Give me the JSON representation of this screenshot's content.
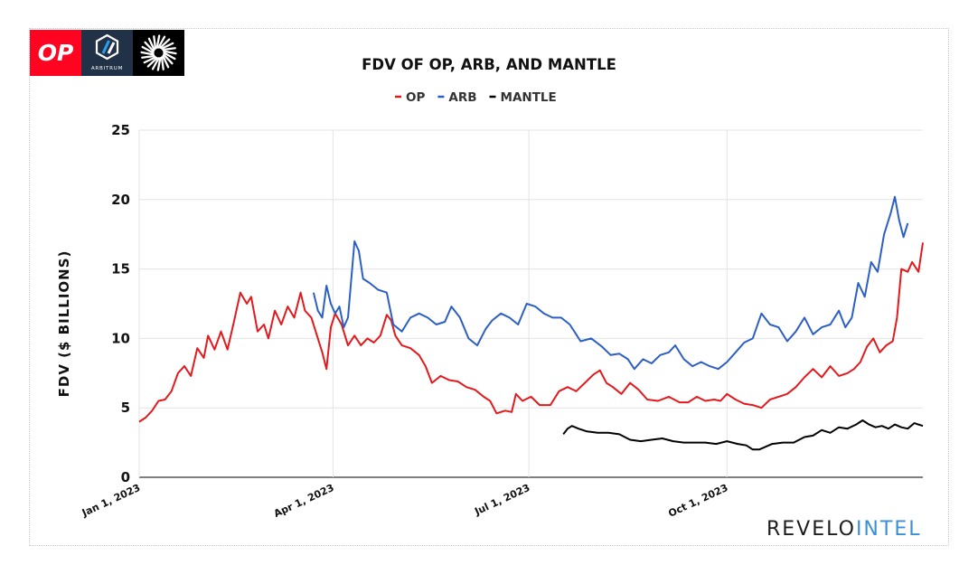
{
  "logos": {
    "op_text": "OP",
    "arb_text": "ARBITRUM",
    "colors": {
      "op": "#ff0420",
      "arb": "#213147",
      "mantle": "#000000"
    },
    "icons": [
      "op-logo-icon",
      "arbitrum-logo-icon",
      "mantle-logo-icon"
    ]
  },
  "brand": {
    "part1": "REVELO",
    "part2": "INTEL",
    "colors": {
      "part1": "#1d1d1d",
      "part2": "#3b8fd9"
    }
  },
  "chart_data": {
    "type": "line",
    "title": "FDV OF OP, ARB, AND MANTLE",
    "xlabel": "",
    "ylabel": "FDV ($ BILLIONS)",
    "xlim": [
      "2023-01-01",
      "2023-12-31"
    ],
    "ylim": [
      0,
      25
    ],
    "yticks": [
      0,
      5,
      10,
      15,
      20,
      25
    ],
    "xticks": [
      {
        "date": "2023-01-01",
        "label": "Jan 1, 2023"
      },
      {
        "date": "2023-04-01",
        "label": "Apr 1, 2023"
      },
      {
        "date": "2023-07-01",
        "label": "Jul 1, 2023"
      },
      {
        "date": "2023-10-01",
        "label": "Oct 1, 2023"
      }
    ],
    "grid": true,
    "legend": "top-center",
    "series": [
      {
        "name": "OP",
        "color": "#e3191c",
        "points": [
          [
            "2023-01-01",
            4.0
          ],
          [
            "2023-01-04",
            4.3
          ],
          [
            "2023-01-07",
            4.8
          ],
          [
            "2023-01-10",
            5.5
          ],
          [
            "2023-01-13",
            5.6
          ],
          [
            "2023-01-16",
            6.2
          ],
          [
            "2023-01-19",
            7.5
          ],
          [
            "2023-01-22",
            8.0
          ],
          [
            "2023-01-25",
            7.3
          ],
          [
            "2023-01-28",
            9.3
          ],
          [
            "2023-01-31",
            8.6
          ],
          [
            "2023-02-02",
            10.2
          ],
          [
            "2023-02-05",
            9.2
          ],
          [
            "2023-02-08",
            10.5
          ],
          [
            "2023-02-11",
            9.2
          ],
          [
            "2023-02-14",
            11.2
          ],
          [
            "2023-02-17",
            13.3
          ],
          [
            "2023-02-20",
            12.5
          ],
          [
            "2023-02-22",
            13.0
          ],
          [
            "2023-02-25",
            10.5
          ],
          [
            "2023-02-28",
            11.0
          ],
          [
            "2023-03-02",
            10.0
          ],
          [
            "2023-03-05",
            12.0
          ],
          [
            "2023-03-08",
            11.0
          ],
          [
            "2023-03-11",
            12.3
          ],
          [
            "2023-03-14",
            11.5
          ],
          [
            "2023-03-17",
            13.3
          ],
          [
            "2023-03-19",
            12.0
          ],
          [
            "2023-03-22",
            11.5
          ],
          [
            "2023-03-25",
            10.0
          ],
          [
            "2023-03-27",
            9.0
          ],
          [
            "2023-03-29",
            7.8
          ],
          [
            "2023-03-31",
            10.8
          ],
          [
            "2023-04-02",
            11.8
          ],
          [
            "2023-04-05",
            11.0
          ],
          [
            "2023-04-08",
            9.5
          ],
          [
            "2023-04-11",
            10.2
          ],
          [
            "2023-04-14",
            9.5
          ],
          [
            "2023-04-17",
            10.0
          ],
          [
            "2023-04-20",
            9.7
          ],
          [
            "2023-04-23",
            10.2
          ],
          [
            "2023-04-26",
            11.7
          ],
          [
            "2023-04-28",
            11.3
          ],
          [
            "2023-04-30",
            10.2
          ],
          [
            "2023-05-03",
            9.5
          ],
          [
            "2023-05-07",
            9.3
          ],
          [
            "2023-05-11",
            8.8
          ],
          [
            "2023-05-14",
            8.0
          ],
          [
            "2023-05-17",
            6.8
          ],
          [
            "2023-05-21",
            7.3
          ],
          [
            "2023-05-25",
            7.0
          ],
          [
            "2023-05-29",
            6.9
          ],
          [
            "2023-06-02",
            6.5
          ],
          [
            "2023-06-06",
            6.3
          ],
          [
            "2023-06-10",
            5.8
          ],
          [
            "2023-06-13",
            5.5
          ],
          [
            "2023-06-16",
            4.6
          ],
          [
            "2023-06-20",
            4.8
          ],
          [
            "2023-06-23",
            4.7
          ],
          [
            "2023-06-25",
            6.0
          ],
          [
            "2023-06-28",
            5.5
          ],
          [
            "2023-07-02",
            5.8
          ],
          [
            "2023-07-06",
            5.2
          ],
          [
            "2023-07-11",
            5.2
          ],
          [
            "2023-07-15",
            6.2
          ],
          [
            "2023-07-19",
            6.5
          ],
          [
            "2023-07-23",
            6.2
          ],
          [
            "2023-07-27",
            6.8
          ],
          [
            "2023-07-31",
            7.4
          ],
          [
            "2023-08-03",
            7.7
          ],
          [
            "2023-08-06",
            6.8
          ],
          [
            "2023-08-09",
            6.5
          ],
          [
            "2023-08-13",
            6.0
          ],
          [
            "2023-08-17",
            6.8
          ],
          [
            "2023-08-21",
            6.3
          ],
          [
            "2023-08-25",
            5.6
          ],
          [
            "2023-08-30",
            5.5
          ],
          [
            "2023-09-04",
            5.8
          ],
          [
            "2023-09-09",
            5.4
          ],
          [
            "2023-09-13",
            5.4
          ],
          [
            "2023-09-17",
            5.8
          ],
          [
            "2023-09-21",
            5.5
          ],
          [
            "2023-09-25",
            5.6
          ],
          [
            "2023-09-28",
            5.5
          ],
          [
            "2023-10-01",
            6.0
          ],
          [
            "2023-10-05",
            5.6
          ],
          [
            "2023-10-09",
            5.3
          ],
          [
            "2023-10-13",
            5.2
          ],
          [
            "2023-10-17",
            5.0
          ],
          [
            "2023-10-21",
            5.6
          ],
          [
            "2023-10-25",
            5.8
          ],
          [
            "2023-10-29",
            6.0
          ],
          [
            "2023-11-02",
            6.5
          ],
          [
            "2023-11-06",
            7.2
          ],
          [
            "2023-11-10",
            7.8
          ],
          [
            "2023-11-14",
            7.2
          ],
          [
            "2023-11-18",
            8.0
          ],
          [
            "2023-11-22",
            7.3
          ],
          [
            "2023-11-26",
            7.5
          ],
          [
            "2023-11-29",
            7.8
          ],
          [
            "2023-12-02",
            8.3
          ],
          [
            "2023-12-05",
            9.4
          ],
          [
            "2023-12-08",
            10.0
          ],
          [
            "2023-12-11",
            9.0
          ],
          [
            "2023-12-14",
            9.5
          ],
          [
            "2023-12-17",
            9.8
          ],
          [
            "2023-12-19",
            11.5
          ],
          [
            "2023-12-21",
            15.0
          ],
          [
            "2023-12-24",
            14.8
          ],
          [
            "2023-12-26",
            15.5
          ],
          [
            "2023-12-29",
            14.8
          ],
          [
            "2023-12-31",
            16.9
          ]
        ]
      },
      {
        "name": "ARB",
        "color": "#2c5fc4",
        "points": [
          [
            "2023-03-23",
            13.3
          ],
          [
            "2023-03-25",
            12.0
          ],
          [
            "2023-03-27",
            11.5
          ],
          [
            "2023-03-29",
            13.8
          ],
          [
            "2023-03-31",
            12.5
          ],
          [
            "2023-04-02",
            11.8
          ],
          [
            "2023-04-04",
            12.3
          ],
          [
            "2023-04-06",
            10.8
          ],
          [
            "2023-04-08",
            11.5
          ],
          [
            "2023-04-11",
            17.0
          ],
          [
            "2023-04-13",
            16.3
          ],
          [
            "2023-04-15",
            14.3
          ],
          [
            "2023-04-18",
            14.0
          ],
          [
            "2023-04-22",
            13.5
          ],
          [
            "2023-04-26",
            13.3
          ],
          [
            "2023-04-29",
            11.0
          ],
          [
            "2023-05-03",
            10.5
          ],
          [
            "2023-05-07",
            11.5
          ],
          [
            "2023-05-11",
            11.8
          ],
          [
            "2023-05-15",
            11.5
          ],
          [
            "2023-05-19",
            11.0
          ],
          [
            "2023-05-23",
            11.2
          ],
          [
            "2023-05-26",
            12.3
          ],
          [
            "2023-05-30",
            11.5
          ],
          [
            "2023-06-03",
            10.0
          ],
          [
            "2023-06-07",
            9.5
          ],
          [
            "2023-06-11",
            10.7
          ],
          [
            "2023-06-14",
            11.3
          ],
          [
            "2023-06-18",
            11.8
          ],
          [
            "2023-06-22",
            11.5
          ],
          [
            "2023-06-26",
            11.0
          ],
          [
            "2023-06-30",
            12.5
          ],
          [
            "2023-07-04",
            12.3
          ],
          [
            "2023-07-08",
            11.8
          ],
          [
            "2023-07-12",
            11.5
          ],
          [
            "2023-07-16",
            11.5
          ],
          [
            "2023-07-20",
            11.0
          ],
          [
            "2023-07-25",
            9.8
          ],
          [
            "2023-07-30",
            10.0
          ],
          [
            "2023-08-04",
            9.4
          ],
          [
            "2023-08-08",
            8.8
          ],
          [
            "2023-08-12",
            8.9
          ],
          [
            "2023-08-16",
            8.5
          ],
          [
            "2023-08-19",
            7.8
          ],
          [
            "2023-08-23",
            8.5
          ],
          [
            "2023-08-27",
            8.2
          ],
          [
            "2023-08-31",
            8.8
          ],
          [
            "2023-09-04",
            9.0
          ],
          [
            "2023-09-07",
            9.5
          ],
          [
            "2023-09-11",
            8.5
          ],
          [
            "2023-09-15",
            8.0
          ],
          [
            "2023-09-19",
            8.3
          ],
          [
            "2023-09-23",
            8.0
          ],
          [
            "2023-09-27",
            7.8
          ],
          [
            "2023-10-01",
            8.3
          ],
          [
            "2023-10-05",
            9.0
          ],
          [
            "2023-10-09",
            9.7
          ],
          [
            "2023-10-13",
            10.0
          ],
          [
            "2023-10-17",
            11.8
          ],
          [
            "2023-10-21",
            11.0
          ],
          [
            "2023-10-25",
            10.8
          ],
          [
            "2023-10-29",
            9.8
          ],
          [
            "2023-11-02",
            10.5
          ],
          [
            "2023-11-06",
            11.5
          ],
          [
            "2023-11-10",
            10.3
          ],
          [
            "2023-11-14",
            10.8
          ],
          [
            "2023-11-18",
            11.0
          ],
          [
            "2023-11-22",
            12.0
          ],
          [
            "2023-11-25",
            10.8
          ],
          [
            "2023-11-28",
            11.5
          ],
          [
            "2023-12-01",
            14.0
          ],
          [
            "2023-12-04",
            13.0
          ],
          [
            "2023-12-07",
            15.5
          ],
          [
            "2023-12-10",
            14.8
          ],
          [
            "2023-12-13",
            17.5
          ],
          [
            "2023-12-16",
            19.0
          ],
          [
            "2023-12-18",
            20.2
          ],
          [
            "2023-12-20",
            18.5
          ],
          [
            "2023-12-22",
            17.3
          ],
          [
            "2023-12-24",
            18.3
          ]
        ]
      },
      {
        "name": "MANTLE",
        "color": "#000000",
        "points": [
          [
            "2023-07-17",
            3.1
          ],
          [
            "2023-07-19",
            3.5
          ],
          [
            "2023-07-21",
            3.7
          ],
          [
            "2023-07-24",
            3.5
          ],
          [
            "2023-07-28",
            3.3
          ],
          [
            "2023-08-02",
            3.2
          ],
          [
            "2023-08-07",
            3.2
          ],
          [
            "2023-08-12",
            3.1
          ],
          [
            "2023-08-17",
            2.7
          ],
          [
            "2023-08-22",
            2.6
          ],
          [
            "2023-08-27",
            2.7
          ],
          [
            "2023-09-01",
            2.8
          ],
          [
            "2023-09-06",
            2.6
          ],
          [
            "2023-09-11",
            2.5
          ],
          [
            "2023-09-16",
            2.5
          ],
          [
            "2023-09-21",
            2.5
          ],
          [
            "2023-09-26",
            2.4
          ],
          [
            "2023-10-01",
            2.6
          ],
          [
            "2023-10-06",
            2.4
          ],
          [
            "2023-10-10",
            2.3
          ],
          [
            "2023-10-13",
            2.0
          ],
          [
            "2023-10-16",
            2.0
          ],
          [
            "2023-10-19",
            2.2
          ],
          [
            "2023-10-22",
            2.4
          ],
          [
            "2023-10-27",
            2.5
          ],
          [
            "2023-11-01",
            2.5
          ],
          [
            "2023-11-06",
            2.9
          ],
          [
            "2023-11-10",
            3.0
          ],
          [
            "2023-11-14",
            3.4
          ],
          [
            "2023-11-18",
            3.2
          ],
          [
            "2023-11-22",
            3.6
          ],
          [
            "2023-11-26",
            3.5
          ],
          [
            "2023-11-30",
            3.8
          ],
          [
            "2023-12-03",
            4.1
          ],
          [
            "2023-12-06",
            3.8
          ],
          [
            "2023-12-09",
            3.6
          ],
          [
            "2023-12-12",
            3.7
          ],
          [
            "2023-12-15",
            3.5
          ],
          [
            "2023-12-18",
            3.8
          ],
          [
            "2023-12-21",
            3.6
          ],
          [
            "2023-12-24",
            3.5
          ],
          [
            "2023-12-27",
            3.9
          ],
          [
            "2023-12-31",
            3.7
          ]
        ]
      }
    ]
  }
}
